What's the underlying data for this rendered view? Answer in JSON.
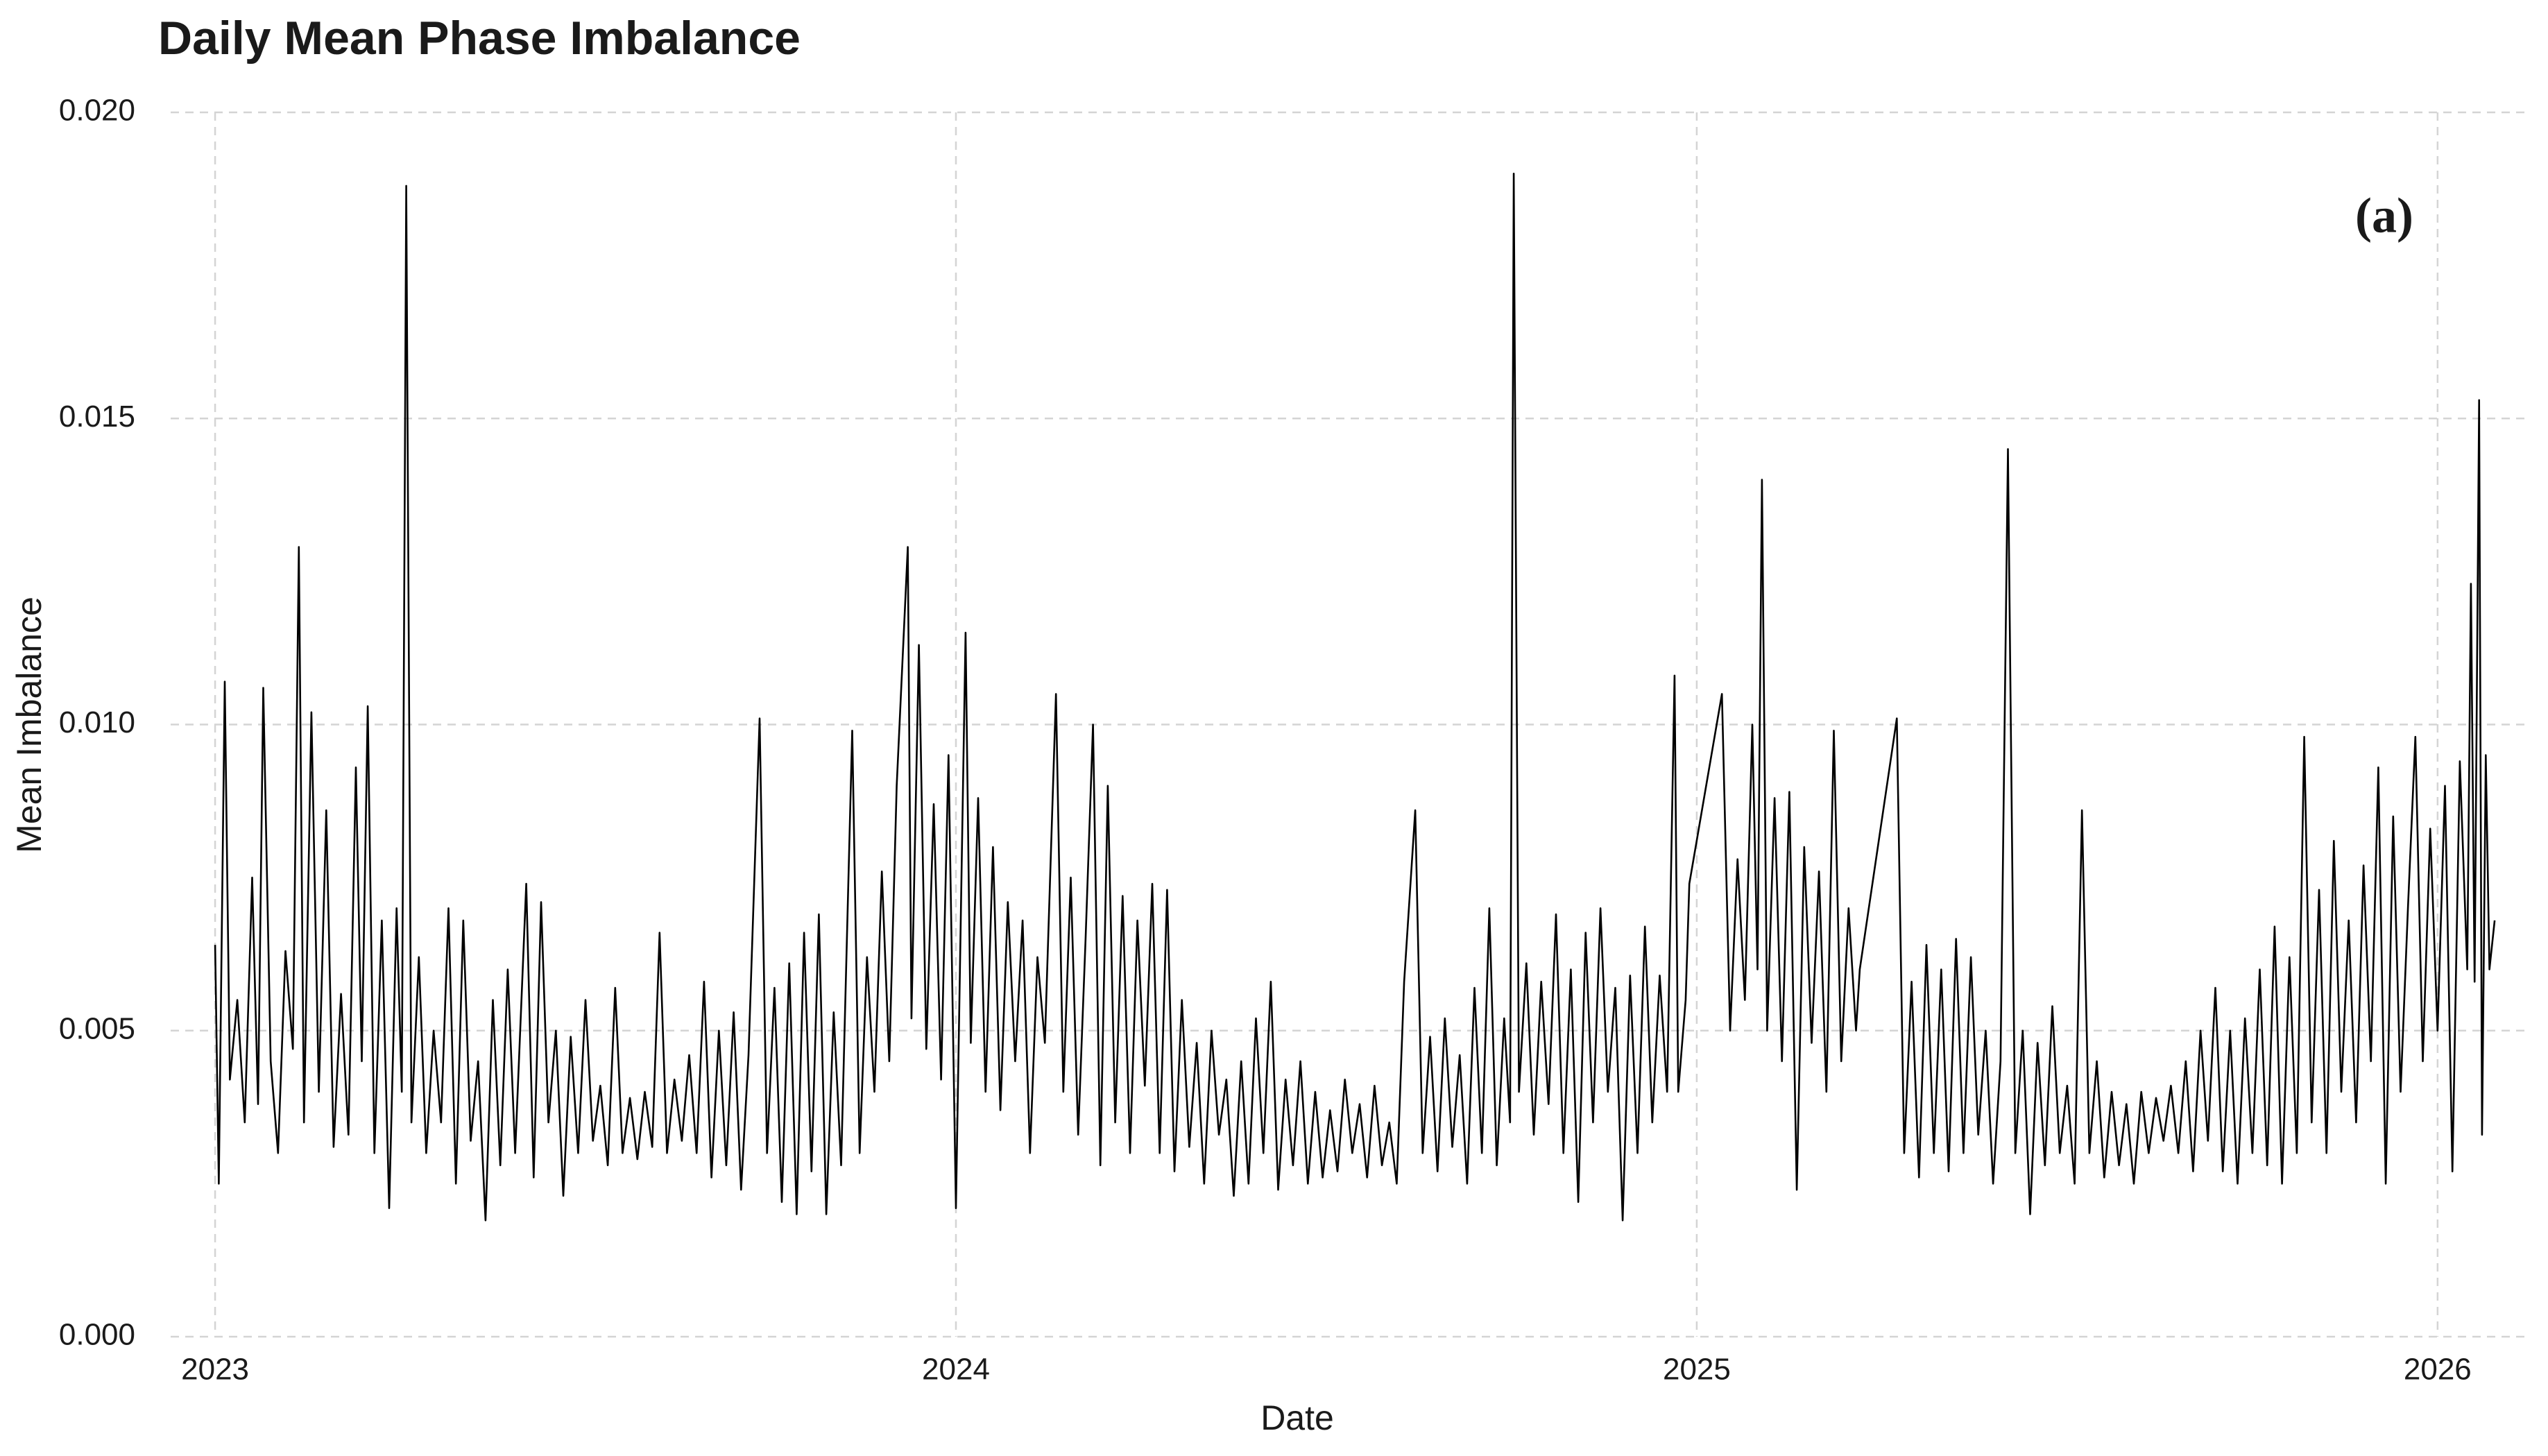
{
  "chart_data": {
    "type": "line",
    "title": "Daily Mean Phase Imbalance",
    "annotation": "(a)",
    "x_label": "Date",
    "y_label": "Mean Imbalance",
    "color": "#000000",
    "grid": true,
    "xlim": [
      2022.94,
      2026.12
    ],
    "xticks": [
      2023,
      2024,
      2025,
      2026
    ],
    "ylim": [
      0,
      0.02
    ],
    "yticks": [
      {
        "value": 0,
        "label": "0.000"
      },
      {
        "value": 0.005,
        "label": "0.005"
      },
      {
        "value": 0.01,
        "label": "0.010"
      },
      {
        "value": 0.015,
        "label": "0.015"
      },
      {
        "value": 0.02,
        "label": "0.020"
      }
    ],
    "x": [
      2023.0,
      2023.005,
      2023.013,
      2023.02,
      2023.03,
      2023.04,
      2023.05,
      2023.058,
      2023.065,
      2023.075,
      2023.085,
      2023.095,
      2023.105,
      2023.113,
      2023.12,
      2023.13,
      2023.14,
      2023.15,
      2023.16,
      2023.17,
      2023.18,
      2023.19,
      2023.198,
      2023.206,
      2023.215,
      2023.225,
      2023.235,
      2023.245,
      2023.252,
      2023.258,
      2023.265,
      2023.275,
      2023.285,
      2023.295,
      2023.305,
      2023.315,
      2023.325,
      2023.335,
      2023.345,
      2023.355,
      2023.365,
      2023.375,
      2023.385,
      2023.395,
      2023.405,
      2023.42,
      2023.43,
      2023.44,
      2023.45,
      2023.46,
      2023.47,
      2023.48,
      2023.49,
      2023.5,
      2023.51,
      2023.52,
      2023.53,
      2023.54,
      2023.55,
      2023.56,
      2023.57,
      2023.58,
      2023.59,
      2023.6,
      2023.61,
      2023.62,
      2023.63,
      2023.64,
      2023.65,
      2023.66,
      2023.67,
      2023.68,
      2023.69,
      2023.7,
      2023.71,
      2023.72,
      2023.735,
      2023.745,
      2023.755,
      2023.765,
      2023.775,
      2023.785,
      2023.795,
      2023.805,
      2023.815,
      2023.825,
      2023.835,
      2023.845,
      2023.86,
      2023.87,
      2023.88,
      2023.89,
      2023.9,
      2023.91,
      2023.92,
      2023.935,
      2023.94,
      2023.95,
      2023.96,
      2023.97,
      2023.98,
      2023.99,
      2024.0,
      2024.013,
      2024.02,
      2024.03,
      2024.04,
      2024.05,
      2024.06,
      2024.07,
      2024.08,
      2024.09,
      2024.1,
      2024.11,
      2024.12,
      2024.135,
      2024.145,
      2024.155,
      2024.165,
      2024.175,
      2024.185,
      2024.195,
      2024.205,
      2024.215,
      2024.225,
      2024.235,
      2024.245,
      2024.255,
      2024.265,
      2024.275,
      2024.285,
      2024.295,
      2024.305,
      2024.315,
      2024.325,
      2024.335,
      2024.345,
      2024.355,
      2024.365,
      2024.375,
      2024.385,
      2024.395,
      2024.405,
      2024.415,
      2024.425,
      2024.435,
      2024.445,
      2024.455,
      2024.465,
      2024.475,
      2024.485,
      2024.495,
      2024.505,
      2024.515,
      2024.525,
      2024.535,
      2024.545,
      2024.555,
      2024.565,
      2024.575,
      2024.585,
      2024.595,
      2024.605,
      2024.62,
      2024.63,
      2024.64,
      2024.65,
      2024.66,
      2024.67,
      2024.68,
      2024.69,
      2024.7,
      2024.71,
      2024.72,
      2024.73,
      2024.74,
      2024.748,
      2024.753,
      2024.76,
      2024.77,
      2024.78,
      2024.79,
      2024.8,
      2024.81,
      2024.82,
      2024.83,
      2024.84,
      2024.85,
      2024.86,
      2024.87,
      2024.88,
      2024.89,
      2024.9,
      2024.91,
      2024.92,
      2024.93,
      2024.94,
      2024.95,
      2024.96,
      2024.97,
      2024.975,
      2024.985,
      2024.99,
      2025.034,
      2025.045,
      2025.055,
      2025.065,
      2025.075,
      2025.082,
      2025.088,
      2025.095,
      2025.105,
      2025.115,
      2025.125,
      2025.135,
      2025.145,
      2025.155,
      2025.165,
      2025.175,
      2025.185,
      2025.195,
      2025.205,
      2025.215,
      2025.22,
      2025.27,
      2025.28,
      2025.29,
      2025.3,
      2025.31,
      2025.32,
      2025.33,
      2025.34,
      2025.35,
      2025.36,
      2025.37,
      2025.38,
      2025.39,
      2025.4,
      2025.41,
      2025.42,
      2025.43,
      2025.44,
      2025.45,
      2025.46,
      2025.47,
      2025.48,
      2025.49,
      2025.5,
      2025.51,
      2025.52,
      2025.53,
      2025.54,
      2025.55,
      2025.56,
      2025.57,
      2025.58,
      2025.59,
      2025.6,
      2025.61,
      2025.62,
      2025.63,
      2025.64,
      2025.65,
      2025.66,
      2025.67,
      2025.68,
      2025.69,
      2025.7,
      2025.71,
      2025.72,
      2025.73,
      2025.74,
      2025.75,
      2025.76,
      2025.77,
      2025.78,
      2025.79,
      2025.8,
      2025.81,
      2025.82,
      2025.83,
      2025.84,
      2025.85,
      2025.86,
      2025.87,
      2025.88,
      2025.89,
      2025.9,
      2025.91,
      2025.92,
      2025.93,
      2025.94,
      2025.95,
      2025.96,
      2025.97,
      2025.98,
      2025.99,
      2026.0,
      2026.01,
      2026.02,
      2026.03,
      2026.04,
      2026.045,
      2026.05,
      2026.056,
      2026.06,
      2026.065,
      2026.07,
      2026.077
    ],
    "values": [
      0.0064,
      0.0025,
      0.0107,
      0.0042,
      0.0055,
      0.0035,
      0.0075,
      0.0038,
      0.0106,
      0.0045,
      0.003,
      0.0063,
      0.0047,
      0.0129,
      0.0035,
      0.0102,
      0.004,
      0.0086,
      0.0031,
      0.0056,
      0.0033,
      0.0093,
      0.0045,
      0.0103,
      0.003,
      0.0068,
      0.0021,
      0.007,
      0.004,
      0.0188,
      0.0035,
      0.0062,
      0.003,
      0.005,
      0.0035,
      0.007,
      0.0025,
      0.0068,
      0.0032,
      0.0045,
      0.0019,
      0.0055,
      0.0028,
      0.006,
      0.003,
      0.0074,
      0.0026,
      0.0071,
      0.0035,
      0.005,
      0.0023,
      0.0049,
      0.003,
      0.0055,
      0.0032,
      0.0041,
      0.0028,
      0.0057,
      0.003,
      0.0039,
      0.0029,
      0.004,
      0.0031,
      0.0066,
      0.003,
      0.0042,
      0.0032,
      0.0046,
      0.003,
      0.0058,
      0.0026,
      0.005,
      0.0028,
      0.0053,
      0.0024,
      0.0046,
      0.0101,
      0.003,
      0.0057,
      0.0022,
      0.0061,
      0.002,
      0.0066,
      0.0027,
      0.0069,
      0.002,
      0.0053,
      0.0028,
      0.0099,
      0.003,
      0.0062,
      0.004,
      0.0076,
      0.0045,
      0.009,
      0.0129,
      0.0052,
      0.0113,
      0.0047,
      0.0087,
      0.0042,
      0.0095,
      0.0021,
      0.0115,
      0.0048,
      0.0088,
      0.004,
      0.008,
      0.0037,
      0.0071,
      0.0045,
      0.0068,
      0.003,
      0.0062,
      0.0048,
      0.0105,
      0.004,
      0.0075,
      0.0033,
      0.0065,
      0.01,
      0.0028,
      0.009,
      0.0035,
      0.0072,
      0.003,
      0.0068,
      0.0041,
      0.0074,
      0.003,
      0.0073,
      0.0027,
      0.0055,
      0.0031,
      0.0048,
      0.0025,
      0.005,
      0.0033,
      0.0042,
      0.0023,
      0.0045,
      0.0025,
      0.0052,
      0.003,
      0.0058,
      0.0024,
      0.0042,
      0.0028,
      0.0045,
      0.0025,
      0.004,
      0.0026,
      0.0037,
      0.0027,
      0.0042,
      0.003,
      0.0038,
      0.0026,
      0.0041,
      0.0028,
      0.0035,
      0.0025,
      0.0058,
      0.0086,
      0.003,
      0.0049,
      0.0027,
      0.0052,
      0.0031,
      0.0046,
      0.0025,
      0.0057,
      0.003,
      0.007,
      0.0028,
      0.0052,
      0.0035,
      0.019,
      0.004,
      0.0061,
      0.0033,
      0.0058,
      0.0038,
      0.0069,
      0.003,
      0.006,
      0.0022,
      0.0066,
      0.0035,
      0.007,
      0.004,
      0.0057,
      0.0019,
      0.0059,
      0.003,
      0.0067,
      0.0035,
      0.0059,
      0.004,
      0.0108,
      0.004,
      0.0055,
      0.0074,
      0.0105,
      0.005,
      0.0078,
      0.0055,
      0.01,
      0.006,
      0.014,
      0.005,
      0.0088,
      0.0045,
      0.0089,
      0.0024,
      0.008,
      0.0048,
      0.0076,
      0.004,
      0.0099,
      0.0045,
      0.007,
      0.005,
      0.006,
      0.0101,
      0.003,
      0.0058,
      0.0026,
      0.0064,
      0.003,
      0.006,
      0.0027,
      0.0065,
      0.003,
      0.0062,
      0.0033,
      0.005,
      0.0025,
      0.0045,
      0.0145,
      0.003,
      0.005,
      0.002,
      0.0048,
      0.0028,
      0.0054,
      0.003,
      0.0041,
      0.0025,
      0.0086,
      0.003,
      0.0045,
      0.0026,
      0.004,
      0.0028,
      0.0038,
      0.0025,
      0.004,
      0.003,
      0.0039,
      0.0032,
      0.0041,
      0.003,
      0.0045,
      0.0027,
      0.005,
      0.0032,
      0.0057,
      0.0027,
      0.005,
      0.0025,
      0.0052,
      0.003,
      0.006,
      0.0028,
      0.0067,
      0.0025,
      0.0062,
      0.003,
      0.0098,
      0.0035,
      0.0073,
      0.003,
      0.0081,
      0.004,
      0.0068,
      0.0035,
      0.0077,
      0.0045,
      0.0093,
      0.0025,
      0.0085,
      0.004,
      0.007,
      0.0098,
      0.0045,
      0.0083,
      0.005,
      0.009,
      0.0027,
      0.0094,
      0.006,
      0.0123,
      0.0058,
      0.0153,
      0.0033,
      0.0095,
      0.006,
      0.0068
    ]
  }
}
